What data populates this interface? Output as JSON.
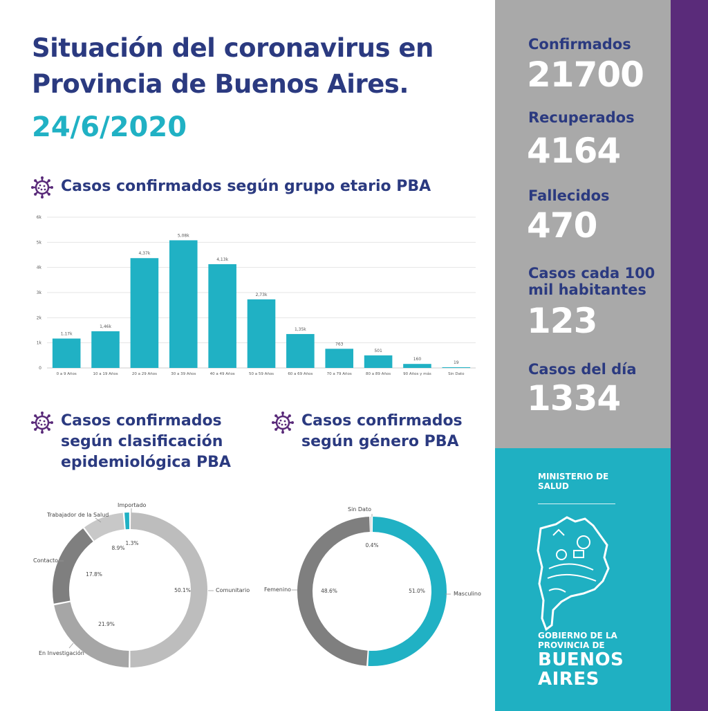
{
  "header": {
    "title": "Situación del coronavirus en Provincia de Buenos Aires.",
    "date": "24/6/2020"
  },
  "sections": {
    "age": "Casos confirmados según grupo etario PBA",
    "epi": "Casos confirmados según clasificación epidemiológica PBA",
    "gender": "Casos confirmados según género PBA"
  },
  "stats": [
    {
      "label": "Confirmados",
      "value": "21700"
    },
    {
      "label": "Recuperados",
      "value": "4164"
    },
    {
      "label": "Fallecidos",
      "value": "470"
    },
    {
      "label": "Casos cada 100 mil habitantes",
      "value": "123"
    },
    {
      "label": "Casos del día",
      "value": "1334"
    }
  ],
  "brand": {
    "ministry": "MINISTERIO DE SALUD",
    "gov_small": "GOBIERNO DE LA PROVINCIA DE",
    "gov_big": "BUENOS AIRES"
  },
  "colors": {
    "navy": "#2b3a80",
    "teal": "#20b1c4",
    "purple": "#5a2b7a",
    "gray_panel": "#a9a9a9"
  },
  "chart_data": [
    {
      "type": "bar",
      "categories": [
        "0 a 9 Años",
        "10 a 19 Años",
        "20 a 29 Años",
        "30 a 39 Años",
        "40 a 49 Años",
        "50 a 59 Años",
        "60 a 69 Años",
        "70 a 79 Años",
        "80 a 89 Años",
        "90 Años y más",
        "Sin Dato"
      ],
      "values": [
        1170,
        1460,
        4370,
        5080,
        4130,
        2730,
        1350,
        763,
        501,
        160,
        19
      ],
      "data_labels": [
        "1,17k",
        "1,46k",
        "4,37k",
        "5,08k",
        "4,13k",
        "2,73k",
        "1,35k",
        "763",
        "501",
        "160",
        "19"
      ],
      "yticks": [
        "0",
        "1k",
        "2k",
        "3k",
        "4k",
        "5k",
        "6k"
      ],
      "ylim": [
        0,
        6000
      ],
      "color": "#20b1c4",
      "grid": true
    },
    {
      "type": "pie",
      "donut": true,
      "categories": [
        "Comunitario",
        "En Investigación",
        "Contacto",
        "Trabajador de la Salud",
        "Importado"
      ],
      "values": [
        50.1,
        21.9,
        17.8,
        8.9,
        1.3
      ],
      "data_labels": [
        "50.1%",
        "21.9%",
        "17.8%",
        "8.9%",
        "1.3%"
      ],
      "colors": [
        "#bdbdbd",
        "#a6a6a6",
        "#7f7f7f",
        "#c8c8c8",
        "#20b1c4"
      ]
    },
    {
      "type": "pie",
      "donut": true,
      "categories": [
        "Masculino",
        "Femenino",
        "Sin Dato"
      ],
      "values": [
        51.0,
        48.6,
        0.4
      ],
      "data_labels": [
        "51.0%",
        "48.6%",
        "0.4%"
      ],
      "colors": [
        "#20b1c4",
        "#7f7f7f",
        "#333333"
      ]
    }
  ]
}
